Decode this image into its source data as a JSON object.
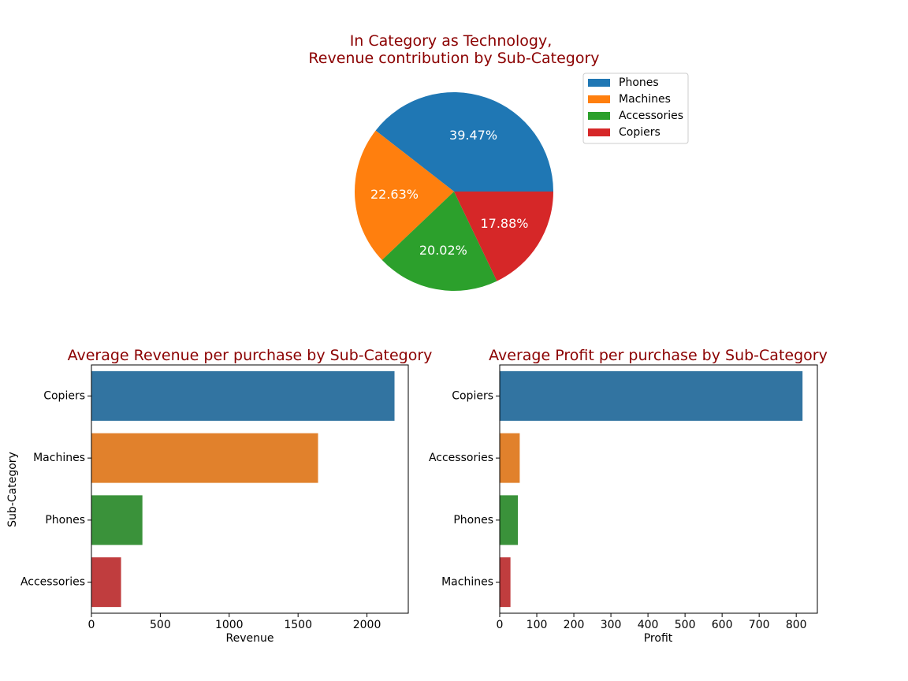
{
  "chart_data": [
    {
      "type": "pie",
      "title_line1": "In Category as Technology,",
      "title_line2": "Revenue contribution by Sub-Category",
      "categories": [
        "Phones",
        "Machines",
        "Accessories",
        "Copiers"
      ],
      "values": [
        39.47,
        22.63,
        20.02,
        17.88
      ],
      "labels": [
        "39.47%",
        "22.63%",
        "20.02%",
        "17.88%"
      ],
      "colors": [
        "#1f77b4",
        "#ff7f0e",
        "#2ca02c",
        "#d62728"
      ],
      "legend": [
        "Phones",
        "Machines",
        "Accessories",
        "Copiers"
      ],
      "legend_position": "upper-right"
    },
    {
      "type": "bar",
      "orientation": "horizontal",
      "title": "Average Revenue per purchase by Sub-Category",
      "categories": [
        "Copiers",
        "Machines",
        "Phones",
        "Accessories"
      ],
      "values": [
        2200,
        1645,
        370,
        215
      ],
      "colors": [
        "#3274a1",
        "#e1812c",
        "#3a923a",
        "#c03d3e"
      ],
      "xlabel": "Revenue",
      "ylabel": "Sub-Category",
      "xlim": [
        0,
        2300
      ],
      "xticks": [
        0,
        500,
        1000,
        1500,
        2000
      ]
    },
    {
      "type": "bar",
      "orientation": "horizontal",
      "title": "Average Profit per purchase by Sub-Category",
      "categories": [
        "Copiers",
        "Accessories",
        "Phones",
        "Machines"
      ],
      "values": [
        817,
        54,
        49,
        29
      ],
      "colors": [
        "#3274a1",
        "#e1812c",
        "#3a923a",
        "#c03d3e"
      ],
      "xlabel": "Profit",
      "ylabel": "",
      "xlim": [
        0,
        857
      ],
      "xticks": [
        0,
        100,
        200,
        300,
        400,
        500,
        600,
        700,
        800
      ]
    }
  ]
}
